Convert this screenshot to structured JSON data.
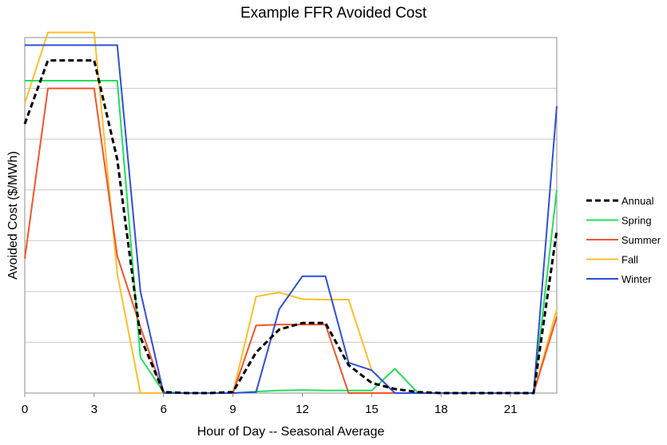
{
  "chart_data": {
    "type": "line",
    "title": "Example FFR Avoided Cost",
    "xlabel": "Hour of Day -- Seasonal Average",
    "ylabel": "Avoided Cost ($/MWh)",
    "xlim": [
      0,
      23
    ],
    "xticks": [
      0,
      3,
      6,
      9,
      12,
      15,
      18,
      21
    ],
    "ylim": [
      0,
      7
    ],
    "y_tick_labels": "none",
    "grid": "horizontal",
    "legend_position": "right",
    "x": [
      0,
      1,
      2,
      3,
      4,
      5,
      6,
      7,
      8,
      9,
      10,
      11,
      12,
      13,
      14,
      15,
      16,
      17,
      18,
      19,
      20,
      21,
      22,
      23
    ],
    "series": [
      {
        "name": "Annual",
        "color": "#000000",
        "dash": "dashed",
        "values": [
          5.3,
          6.55,
          6.55,
          6.55,
          4.6,
          1.1,
          0.02,
          0.0,
          0.0,
          0.02,
          0.8,
          1.25,
          1.38,
          1.38,
          0.55,
          0.2,
          0.08,
          0.02,
          0.0,
          0.0,
          0.0,
          0.0,
          0.0,
          3.2
        ]
      },
      {
        "name": "Spring",
        "color": "#22e05a",
        "dash": "solid",
        "values": [
          6.15,
          6.15,
          6.15,
          6.15,
          6.15,
          0.7,
          0.02,
          0.0,
          0.0,
          0.0,
          0.03,
          0.05,
          0.06,
          0.05,
          0.05,
          0.05,
          0.48,
          0.0,
          0.0,
          0.0,
          0.0,
          0.0,
          0.0,
          4.0
        ]
      },
      {
        "name": "Summer",
        "color": "#f2552b",
        "dash": "solid",
        "values": [
          2.65,
          6.0,
          6.0,
          6.0,
          2.7,
          1.3,
          0.0,
          0.0,
          0.0,
          0.0,
          1.33,
          1.35,
          1.35,
          1.35,
          0.0,
          0.0,
          0.0,
          0.0,
          0.0,
          0.0,
          0.0,
          0.0,
          0.0,
          1.5
        ]
      },
      {
        "name": "Fall",
        "color": "#fcbf28",
        "dash": "solid",
        "values": [
          5.7,
          7.1,
          7.1,
          7.1,
          2.35,
          0.0,
          0.0,
          0.0,
          0.0,
          0.0,
          1.9,
          1.98,
          1.85,
          1.84,
          1.84,
          0.45,
          0.0,
          0.0,
          0.0,
          0.0,
          0.0,
          0.0,
          0.0,
          1.65
        ]
      },
      {
        "name": "Winter",
        "color": "#2f4fd8",
        "dash": "solid",
        "values": [
          6.85,
          6.85,
          6.85,
          6.85,
          6.85,
          2.0,
          0.0,
          0.0,
          0.0,
          0.0,
          0.02,
          1.65,
          2.3,
          2.3,
          0.6,
          0.45,
          0.0,
          0.0,
          0.0,
          0.0,
          0.0,
          0.0,
          0.0,
          5.65
        ]
      }
    ]
  }
}
